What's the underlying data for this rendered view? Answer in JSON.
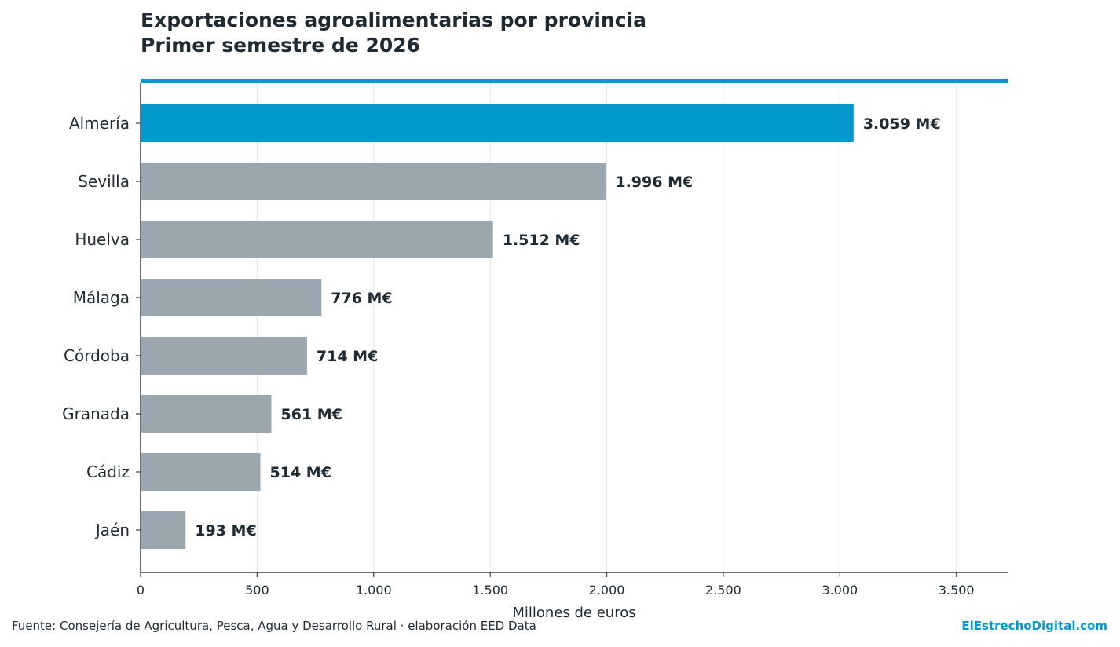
{
  "colors": {
    "highlight": "#0399cd",
    "bar": "#9aa7ae",
    "text": "#1f2a33",
    "grid": "#e6e6e6",
    "axis": "#3a3f44",
    "brand": "#0399cd"
  },
  "chart_data": {
    "type": "bar",
    "orientation": "horizontal",
    "title": "Exportaciones agroalimentarias por provincia",
    "subtitle": "Primer semestre de 2026",
    "xlabel": "Millones de euros",
    "ylabel": "",
    "xlim": [
      0,
      3720
    ],
    "grid": true,
    "categories": [
      "Almería",
      "Sevilla",
      "Huelva",
      "Málaga",
      "Córdoba",
      "Granada",
      "Cádiz",
      "Jaén"
    ],
    "values": [
      3059,
      1996,
      1512,
      776,
      714,
      561,
      514,
      193
    ],
    "value_labels": [
      "3.059 M€",
      "1.996 M€",
      "1.512 M€",
      "776 M€",
      "714 M€",
      "561 M€",
      "514 M€",
      "193 M€"
    ],
    "highlight_index": 0,
    "x_ticks": [
      0,
      500,
      1000,
      1500,
      2000,
      2500,
      3000,
      3500
    ],
    "x_tick_labels": [
      "0",
      "500",
      "1.000",
      "1.500",
      "2.000",
      "2.500",
      "3.000",
      "3.500"
    ]
  },
  "footer": {
    "source": "Fuente: Consejería de Agricultura, Pesca, Agua y Desarrollo Rural · elaboración EED Data",
    "brand": "ElEstrechoDigital.com"
  }
}
